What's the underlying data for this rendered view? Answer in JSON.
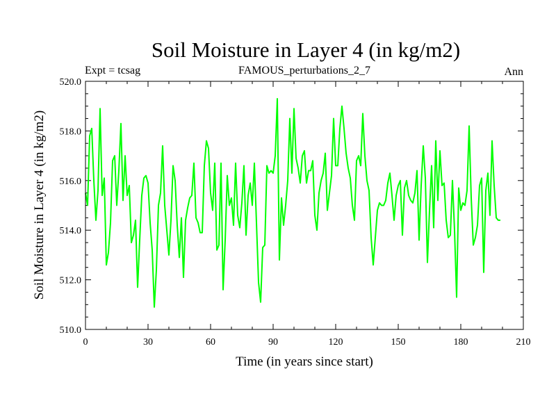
{
  "chart_data": {
    "type": "line",
    "title": "Soil Moisture in Layer 4 (in kg/m2)",
    "subtitle_left": "Expt = tcsag",
    "subtitle_center": "FAMOUS_perturbations_2_7",
    "subtitle_right": "Ann",
    "xlabel": "Time (in years since start)",
    "ylabel": "Soil Moisture in Layer 4 (in kg/m2)",
    "xlim": [
      0,
      210
    ],
    "ylim": [
      510,
      520
    ],
    "xticks": [
      0,
      30,
      60,
      90,
      120,
      150,
      180,
      210
    ],
    "xtick_labels": [
      "0",
      "30",
      "60",
      "90",
      "120",
      "150",
      "180",
      "210"
    ],
    "yticks": [
      510,
      512,
      514,
      516,
      518,
      520
    ],
    "ytick_labels": [
      "510.0",
      "512.0",
      "514.0",
      "516.0",
      "518.0",
      "520.0"
    ],
    "line_color": "#00ff00",
    "series": [
      {
        "name": "Soil Moisture Layer 4",
        "x": [
          0,
          1,
          2,
          3,
          4,
          5,
          6,
          7,
          8,
          9,
          10,
          11,
          12,
          13,
          14,
          15,
          16,
          17,
          18,
          19,
          20,
          21,
          22,
          23,
          24,
          25,
          26,
          27,
          28,
          29,
          30,
          31,
          32,
          33,
          34,
          35,
          36,
          37,
          38,
          39,
          40,
          41,
          42,
          43,
          44,
          45,
          46,
          47,
          48,
          49,
          50,
          51,
          52,
          53,
          54,
          55,
          56,
          57,
          58,
          59,
          60,
          61,
          62,
          63,
          64,
          65,
          66,
          67,
          68,
          69,
          70,
          71,
          72,
          73,
          74,
          75,
          76,
          77,
          78,
          79,
          80,
          81,
          82,
          83,
          84,
          85,
          86,
          87,
          88,
          89,
          90,
          91,
          92,
          93,
          94,
          95,
          96,
          97,
          98,
          99,
          100,
          101,
          102,
          103,
          104,
          105,
          106,
          107,
          108,
          109,
          110,
          111,
          112,
          113,
          114,
          115,
          116,
          117,
          118,
          119,
          120,
          121,
          122,
          123,
          124,
          125,
          126,
          127,
          128,
          129,
          130,
          131,
          132,
          133,
          134,
          135,
          136,
          137,
          138,
          139,
          140,
          141,
          142,
          143,
          144,
          145,
          146,
          147,
          148,
          149,
          150,
          151,
          152,
          153,
          154,
          155,
          156,
          157,
          158,
          159,
          160,
          161,
          162,
          163,
          164,
          165,
          166,
          167,
          168,
          169,
          170,
          171,
          172,
          173,
          174,
          175,
          176,
          177,
          178,
          179,
          180,
          181,
          182,
          183,
          184,
          185,
          186,
          187,
          188,
          189,
          190,
          191,
          192,
          193,
          194,
          195,
          196,
          197,
          198,
          199
        ],
        "values": [
          515.5,
          515.0,
          517.8,
          518.1,
          516.0,
          514.4,
          515.6,
          518.9,
          515.4,
          516.1,
          512.6,
          513.1,
          514.3,
          516.8,
          517.0,
          515.0,
          516.4,
          518.3,
          515.2,
          517.0,
          515.4,
          515.8,
          513.5,
          513.8,
          514.4,
          511.7,
          513.6,
          515.4,
          516.1,
          516.2,
          515.9,
          514.3,
          513.2,
          510.9,
          512.4,
          515.0,
          515.5,
          517.4,
          515.0,
          514.0,
          513.0,
          514.4,
          516.6,
          516.0,
          514.2,
          512.9,
          514.5,
          512.1,
          514.4,
          514.9,
          515.3,
          515.4,
          516.7,
          514.5,
          514.3,
          513.9,
          513.9,
          516.6,
          517.6,
          517.3,
          515.5,
          514.8,
          516.7,
          513.2,
          513.4,
          516.7,
          511.6,
          513.6,
          516.2,
          515.0,
          515.3,
          514.2,
          516.7,
          514.6,
          514.1,
          515.1,
          516.6,
          513.8,
          515.4,
          515.9,
          515.0,
          516.7,
          514.3,
          511.9,
          511.1,
          513.3,
          513.4,
          516.6,
          516.3,
          516.4,
          516.3,
          517.0,
          519.3,
          512.8,
          515.3,
          514.2,
          515.0,
          516.0,
          518.5,
          516.3,
          518.9,
          516.9,
          516.5,
          515.9,
          517.0,
          517.2,
          515.9,
          516.4,
          516.4,
          516.8,
          514.6,
          514.0,
          515.5,
          516.0,
          516.3,
          517.1,
          514.8,
          515.5,
          516.2,
          518.5,
          516.6,
          516.6,
          518.1,
          519.0,
          518.1,
          517.1,
          516.5,
          516.1,
          515.0,
          514.4,
          516.8,
          517.0,
          516.6,
          518.7,
          517.0,
          516.0,
          515.6,
          513.7,
          512.6,
          513.7,
          514.8,
          515.1,
          515.0,
          515.0,
          515.2,
          515.9,
          516.3,
          515.4,
          514.4,
          515.4,
          515.8,
          516.0,
          513.8,
          515.7,
          516.0,
          515.4,
          515.2,
          515.1,
          515.5,
          516.4,
          513.6,
          515.8,
          517.4,
          516.1,
          512.7,
          514.8,
          516.6,
          514.1,
          517.6,
          515.2,
          517.2,
          515.8,
          515.9,
          514.4,
          513.7,
          513.8,
          516.0,
          514.0,
          511.3,
          515.7,
          514.8,
          515.1,
          515.0,
          515.6,
          518.2,
          515.3,
          513.4,
          513.7,
          514.2,
          515.8,
          516.1,
          512.3,
          515.6,
          516.3,
          514.6,
          517.6,
          515.8,
          514.5,
          514.4,
          514.4
        ]
      }
    ]
  }
}
